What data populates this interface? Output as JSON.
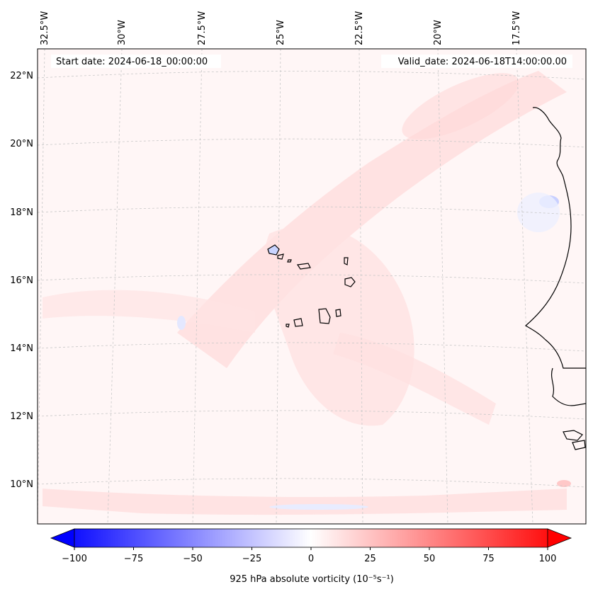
{
  "header": {
    "start_date": "Start date: 2024-06-18_00:00:00",
    "valid_date": "Valid_date: 2024-06-18T14:00:00.00"
  },
  "longitude_labels": [
    "32.5°W",
    "30°W",
    "27.5°W",
    "25°W",
    "22.5°W",
    "20°W",
    "17.5°W"
  ],
  "latitude_labels": [
    "22°N",
    "20°N",
    "18°N",
    "16°N",
    "14°N",
    "12°N",
    "10°N"
  ],
  "colorbar": {
    "min": -100,
    "max": 100,
    "ticks": [
      "−100",
      "−75",
      "−50",
      "−25",
      "0",
      "25",
      "50",
      "75",
      "100"
    ],
    "label": "925 hPa absolute vorticity (10⁻⁵s⁻¹)",
    "colormap": "bwr",
    "low_color": "#0000ff",
    "mid_color": "#ffffff",
    "high_color": "#ff0000"
  },
  "colors": {
    "background_field": "#fff6f6",
    "pink_band": "#ffdede",
    "light_blue_patch": "#e6eaff",
    "coastline": "#000000",
    "gridline": "#c8c8c8"
  }
}
